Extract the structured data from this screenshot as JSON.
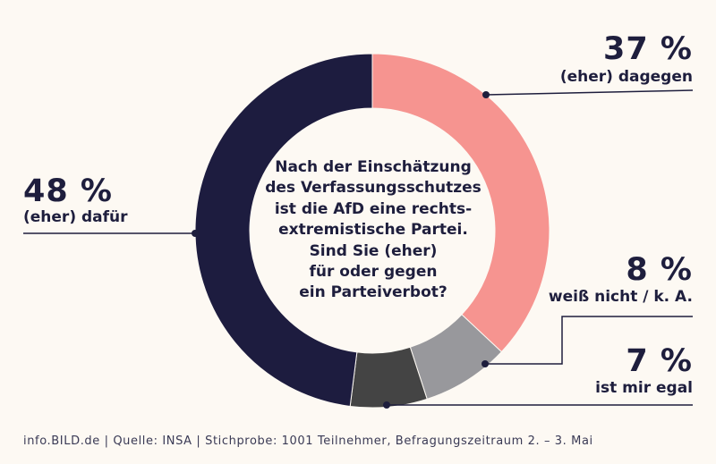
{
  "chart_data": {
    "type": "pie",
    "title": "",
    "slices": [
      {
        "value": 37,
        "value_label": "37 %",
        "label": "(eher) dagegen",
        "color": "#f69490"
      },
      {
        "value": 8,
        "value_label": "8 %",
        "label": "weiß nicht / k. A.",
        "color": "#98989c"
      },
      {
        "value": 7,
        "value_label": "7 %",
        "label": "ist mir egal",
        "color": "#444444"
      },
      {
        "value": 48,
        "value_label": "48 %",
        "label": "(eher) dafür",
        "color": "#1d1c3f"
      }
    ],
    "center_text": [
      "Nach der Einschätzung",
      "des Verfassungsschutzes",
      "ist die AfD eine rechts-",
      "extremistische Partei.",
      "Sind Sie (eher)",
      "für oder gegen",
      "ein Parteiverbot?"
    ]
  },
  "footer": "info.BILD.de | Quelle: INSA | Stichprobe: 1001 Teilnehmer, Befragungszeitraum 2. – 3. Mai",
  "colors": {
    "background": "#fdf9f3",
    "text": "#1e1e3d",
    "line": "#1e1e3d"
  }
}
